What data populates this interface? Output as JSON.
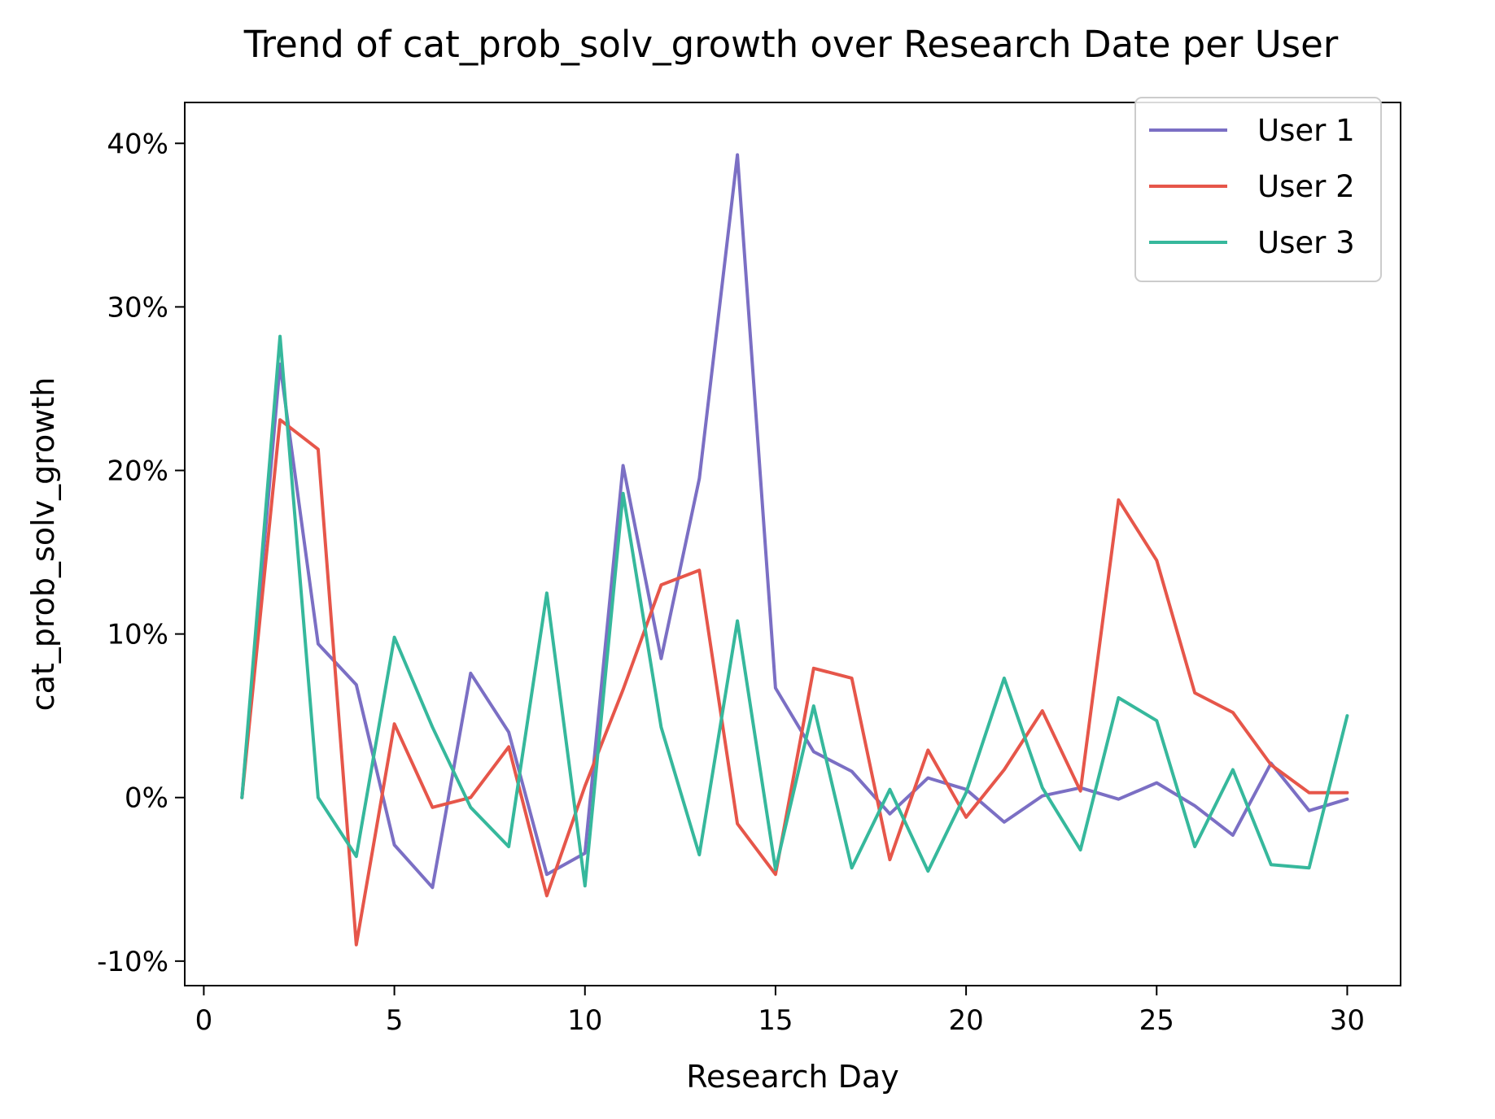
{
  "chart_data": {
    "type": "line",
    "title": "Trend of cat_prob_solv_growth over Research Date per User",
    "xlabel": "Research Day",
    "ylabel": "cat_prob_solv_growth",
    "xlim": [
      -0.5,
      31.4
    ],
    "ylim": [
      -11.5,
      42.5
    ],
    "x_ticks": [
      0,
      5,
      10,
      15,
      20,
      25,
      30
    ],
    "x_tick_labels": [
      "0",
      "5",
      "10",
      "15",
      "20",
      "25",
      "30"
    ],
    "y_ticks": [
      -10,
      0,
      10,
      20,
      30,
      40
    ],
    "y_tick_labels": [
      "-10%",
      "0%",
      "10%",
      "20%",
      "30%",
      "40%"
    ],
    "grid": false,
    "legend_position": "top-right",
    "x": [
      1,
      2,
      3,
      4,
      5,
      6,
      7,
      8,
      9,
      10,
      11,
      12,
      13,
      14,
      15,
      16,
      17,
      18,
      19,
      20,
      21,
      22,
      23,
      24,
      25,
      26,
      27,
      28,
      29,
      30
    ],
    "series": [
      {
        "name": "User 1",
        "color": "#7b6fc4",
        "values": [
          0,
          26.5,
          9.4,
          6.9,
          -2.9,
          -5.5,
          7.6,
          4.0,
          -4.7,
          -3.4,
          20.3,
          8.5,
          19.5,
          39.3,
          6.7,
          2.8,
          1.6,
          -1.0,
          1.2,
          0.5,
          -1.5,
          0.1,
          0.6,
          -0.1,
          0.9,
          -0.5,
          -2.3,
          2.1,
          -0.8,
          -0.1
        ]
      },
      {
        "name": "User 2",
        "color": "#e6564a",
        "values": [
          0,
          23.1,
          21.3,
          -9.0,
          4.5,
          -0.6,
          0,
          3.1,
          -6.0,
          0.7,
          6.6,
          13.0,
          13.9,
          -1.6,
          -4.7,
          7.9,
          7.3,
          -3.8,
          2.9,
          -1.2,
          1.7,
          5.3,
          0.4,
          18.2,
          14.5,
          6.4,
          5.2,
          2.0,
          0.3,
          0.3
        ]
      },
      {
        "name": "User 3",
        "color": "#36b89c",
        "values": [
          0,
          28.2,
          0,
          -3.6,
          9.8,
          4.3,
          -0.6,
          -3.0,
          12.5,
          -5.4,
          18.6,
          4.3,
          -3.5,
          10.8,
          -4.4,
          5.6,
          -4.3,
          0.5,
          -4.5,
          0.3,
          7.3,
          0.6,
          -3.2,
          6.1,
          4.7,
          -3.0,
          1.7,
          -4.1,
          -4.3,
          5.0
        ]
      }
    ]
  }
}
